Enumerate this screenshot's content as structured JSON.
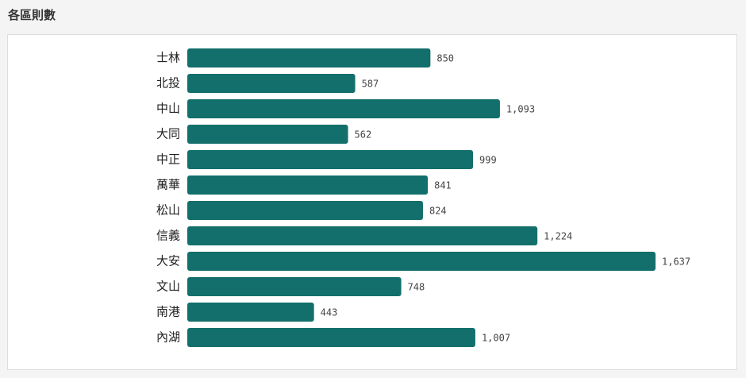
{
  "chart_data": {
    "type": "bar",
    "title": "各區則數",
    "categories": [
      "士林",
      "北投",
      "中山",
      "大同",
      "中正",
      "萬華",
      "松山",
      "信義",
      "大安",
      "文山",
      "南港",
      "內湖"
    ],
    "values": [
      850,
      587,
      1093,
      562,
      999,
      841,
      824,
      1224,
      1637,
      748,
      443,
      1007
    ],
    "value_labels": [
      "850",
      "587",
      "1,093",
      "562",
      "999",
      "841",
      "824",
      "1,224",
      "1,637",
      "748",
      "443",
      "1,007"
    ],
    "color": "#136f6b"
  }
}
